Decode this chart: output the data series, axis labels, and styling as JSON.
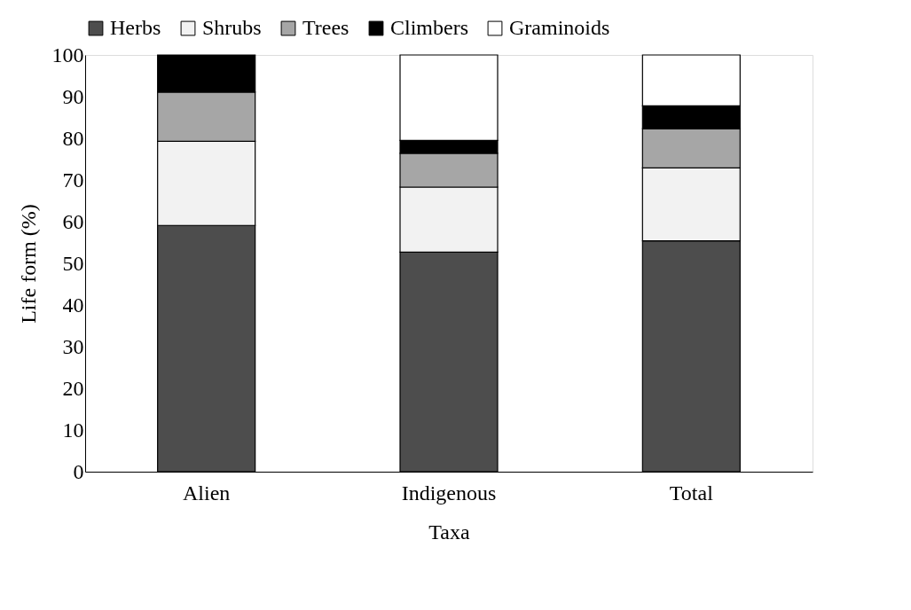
{
  "chart_data": {
    "type": "bar",
    "stacked": true,
    "xlabel": "Taxa",
    "ylabel": "Life form (%)",
    "categories": [
      "Alien",
      "Indigenous",
      "Total"
    ],
    "series": [
      {
        "name": "Herbs",
        "color": "#4d4d4d",
        "values": [
          59.1,
          52.7,
          55.4
        ]
      },
      {
        "name": "Shrubs",
        "color": "#f2f2f2",
        "values": [
          20.2,
          15.6,
          17.5
        ]
      },
      {
        "name": "Trees",
        "color": "#a6a6a6",
        "values": [
          11.8,
          8.1,
          9.4
        ]
      },
      {
        "name": "Climbers",
        "color": "#000000",
        "values": [
          8.9,
          3.1,
          5.5
        ]
      },
      {
        "name": "Graminoids",
        "color": "#ffffff",
        "values": [
          null,
          20.5,
          12.2
        ]
      }
    ],
    "ylim": [
      0,
      100
    ],
    "yticks": [
      0,
      10,
      20,
      30,
      40,
      50,
      60,
      70,
      80,
      90,
      100
    ],
    "grid": false,
    "legend": "top"
  }
}
